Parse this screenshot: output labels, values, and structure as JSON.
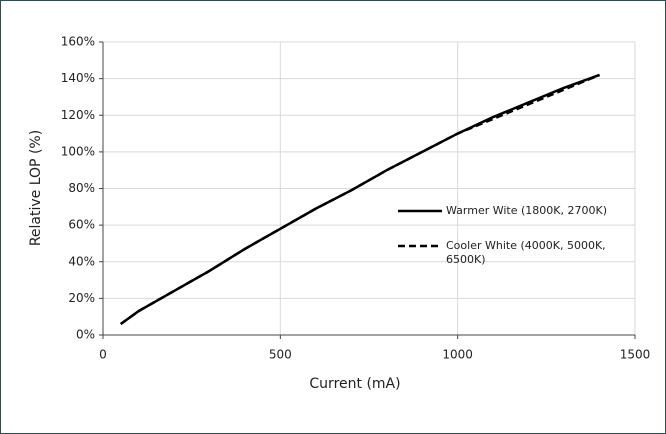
{
  "chart_data": {
    "type": "line",
    "x_label": "Current (mA)",
    "y_label": "Relative LOP (%)",
    "x": [
      50,
      100,
      200,
      300,
      400,
      500,
      600,
      700,
      800,
      900,
      1000,
      1100,
      1200,
      1300,
      1400
    ],
    "series": [
      {
        "name": "Warmer Wite (1800K, 2700K)",
        "color": "#000000",
        "dash": "solid",
        "values": [
          6,
          13,
          24,
          35,
          47,
          58,
          69,
          79,
          90,
          100,
          110,
          119,
          127,
          135,
          142
        ]
      },
      {
        "name": "Cooler White (4000K, 5000K, 6500K)",
        "color": "#000000",
        "dash": "dashed",
        "values": [
          6,
          13,
          24,
          35,
          47,
          58,
          69,
          79,
          90,
          100,
          110,
          118,
          126,
          134,
          142
        ]
      }
    ],
    "xlim": [
      0,
      1500
    ],
    "xticks": [
      0,
      500,
      1000,
      1500
    ],
    "ylim": [
      0,
      160
    ],
    "yticks": [
      {
        "value": 0,
        "label": "0%"
      },
      {
        "value": 20,
        "label": "20%"
      },
      {
        "value": 40,
        "label": "40%"
      },
      {
        "value": 60,
        "label": "60%"
      },
      {
        "value": 80,
        "label": "80%"
      },
      {
        "value": 100,
        "label": "100%"
      },
      {
        "value": 120,
        "label": "120%"
      },
      {
        "value": 140,
        "label": "140%"
      },
      {
        "value": 160,
        "label": "160%"
      }
    ],
    "grid": true,
    "legend": "right"
  }
}
